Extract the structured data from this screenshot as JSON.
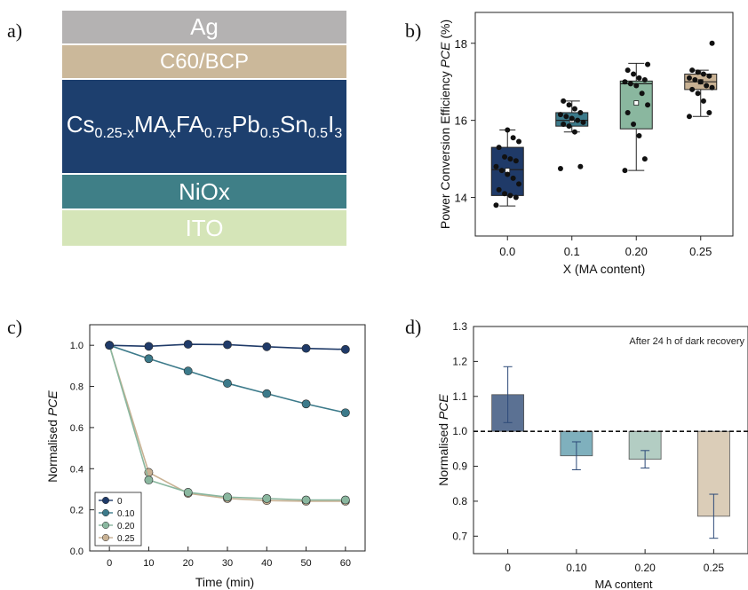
{
  "panel_labels": {
    "a": "a)",
    "b": "b)",
    "c": "c)",
    "d": "d)"
  },
  "colors": {
    "ag": "#b4b2b2",
    "c60": "#cbb89a",
    "perovskite": "#1d3f6e",
    "niox": "#3f7f87",
    "ito": "#d5e5b8",
    "s0": "#1f3a68",
    "s10": "#3c7a8a",
    "s20": "#8ab79f",
    "s25": "#c8b193"
  },
  "panel_a": {
    "layers": [
      {
        "name": "Ag"
      },
      {
        "name": "C60/BCP"
      },
      {
        "name": "perovskite",
        "formula": {
          "cs": "Cs",
          "cs_sub": "0.25-x",
          "ma": "MA",
          "ma_sub": "x",
          "fa": "FA",
          "fa_sub": "0.75",
          "pb": "Pb",
          "pb_sub": "0.5",
          "sn": "Sn",
          "sn_sub": "0.5",
          "i": "I",
          "i_sub": "3"
        }
      },
      {
        "name": "NiOx"
      },
      {
        "name": "ITO"
      }
    ]
  },
  "chart_data": [
    {
      "panel": "b",
      "type": "box",
      "xlabel": "X (MA content)",
      "ylabel_prefix": "Power Conversion Efficiency ",
      "ylabel_italic": "PCE",
      "ylabel_suffix": " (%)",
      "ylim": [
        13.0,
        18.8
      ],
      "yticks": [
        "14",
        "16",
        "18"
      ],
      "ytick_values": [
        14,
        16,
        18
      ],
      "categories": [
        "0.0",
        "0.1",
        "0.20",
        "0.25"
      ],
      "boxes": [
        {
          "q1": 14.05,
          "median": 14.72,
          "q3": 15.3,
          "whisker_low": 13.78,
          "whisker_high": 15.75,
          "mean": 14.7,
          "points": [
            13.8,
            14.0,
            14.05,
            14.1,
            14.2,
            14.35,
            14.5,
            14.6,
            14.7,
            14.8,
            14.95,
            15.0,
            15.05,
            15.3,
            15.45,
            15.55,
            15.75
          ]
        },
        {
          "q1": 15.85,
          "median": 16.0,
          "q3": 16.2,
          "whisker_low": 15.7,
          "whisker_high": 16.5,
          "mean": 16.0,
          "points": [
            14.75,
            14.8,
            15.7,
            15.85,
            15.9,
            15.95,
            16.0,
            16.05,
            16.1,
            16.15,
            16.2,
            16.3,
            16.4,
            16.5
          ]
        },
        {
          "q1": 15.78,
          "median": 16.95,
          "q3": 17.02,
          "whisker_low": 14.7,
          "whisker_high": 17.48,
          "mean": 16.45,
          "points": [
            14.7,
            15.0,
            15.6,
            15.9,
            16.2,
            16.4,
            16.7,
            16.9,
            16.95,
            17.0,
            17.05,
            17.1,
            17.2,
            17.3,
            17.45
          ]
        },
        {
          "q1": 16.8,
          "median": 17.0,
          "q3": 17.2,
          "whisker_low": 16.1,
          "whisker_high": 17.3,
          "mean": 17.0,
          "points": [
            16.1,
            16.2,
            16.5,
            16.7,
            16.8,
            16.85,
            16.9,
            17.0,
            17.05,
            17.1,
            17.15,
            17.2,
            17.25,
            17.3,
            18.0
          ]
        }
      ]
    },
    {
      "panel": "c",
      "type": "line",
      "xlabel": "Time (min)",
      "ylabel_prefix": "Normalised ",
      "ylabel_italic": "PCE",
      "xlim": [
        -5,
        65
      ],
      "ylim": [
        0.0,
        1.1
      ],
      "xticks": [
        0,
        10,
        20,
        30,
        40,
        50,
        60
      ],
      "yticks": [
        "0.0",
        "0.2",
        "0.4",
        "0.6",
        "0.8",
        "1.0"
      ],
      "ytick_values": [
        0.0,
        0.2,
        0.4,
        0.6,
        0.8,
        1.0
      ],
      "x": [
        0,
        10,
        20,
        30,
        40,
        50,
        60
      ],
      "series": [
        {
          "name": "0",
          "values": [
            1.0,
            0.995,
            1.005,
            1.003,
            0.993,
            0.985,
            0.98
          ]
        },
        {
          "name": "0.10",
          "values": [
            1.0,
            0.935,
            0.875,
            0.815,
            0.765,
            0.715,
            0.672
          ]
        },
        {
          "name": "0.20",
          "values": [
            1.0,
            0.345,
            0.285,
            0.262,
            0.255,
            0.248,
            0.248
          ]
        },
        {
          "name": "0.25",
          "values": [
            1.0,
            0.382,
            0.28,
            0.255,
            0.245,
            0.242,
            0.242
          ]
        }
      ],
      "legend_position": "bottom-left"
    },
    {
      "panel": "d",
      "type": "bar",
      "xlabel": "MA content",
      "ylabel_prefix": "Normalised ",
      "ylabel_italic": "PCE",
      "annotation": "After 24 h of dark recovery",
      "ylim": [
        0.65,
        1.3
      ],
      "yticks": [
        "0.7",
        "0.8",
        "0.9",
        "1.0",
        "1.1",
        "1.2",
        "1.3"
      ],
      "ytick_values": [
        0.7,
        0.8,
        0.9,
        1.0,
        1.1,
        1.2,
        1.3
      ],
      "baseline": 1.0,
      "categories": [
        "0",
        "0.10",
        "0.20",
        "0.25"
      ],
      "values": [
        1.105,
        0.93,
        0.92,
        0.757
      ],
      "errors": [
        0.08,
        0.04,
        0.025,
        0.063
      ]
    }
  ]
}
